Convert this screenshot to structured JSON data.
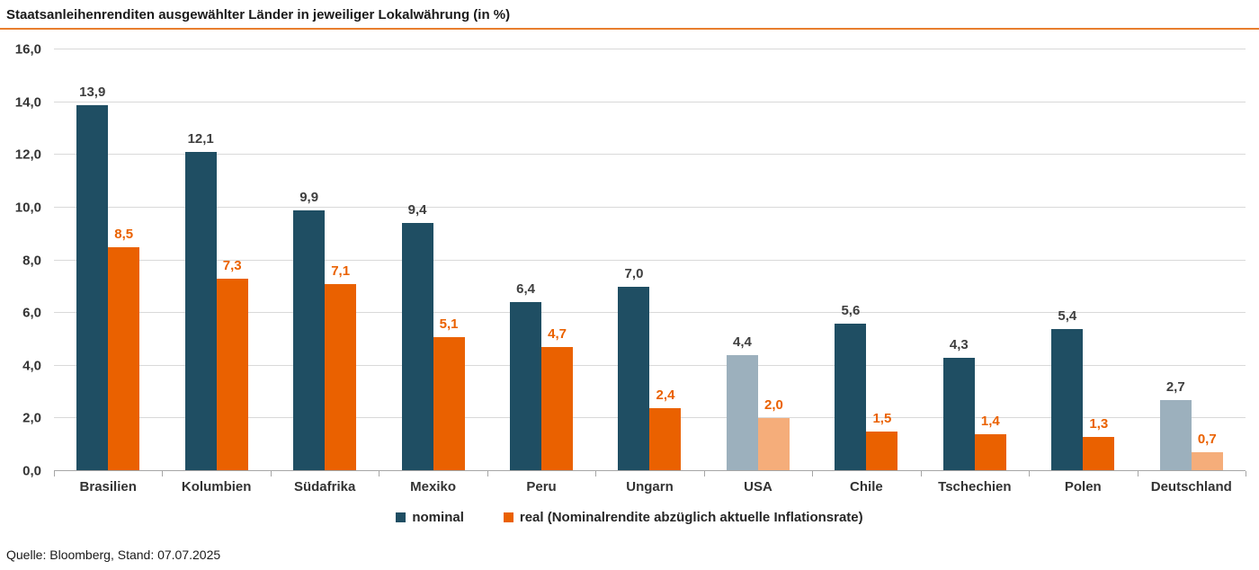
{
  "title": "Staatsanleihenrenditen ausgewählter Länder in jeweiliger Lokalwährung (in %)",
  "source": "Quelle: Bloomberg, Stand: 07.07.2025",
  "colors": {
    "nominal": "#1f4e63",
    "real": "#ea6100",
    "nominal_muted": "#9cb0bd",
    "real_muted": "#f5ad7a",
    "title_underline": "#e87e2e",
    "gridline": "#d9d9d9",
    "axis_line": "#a6a6a6",
    "value_label_dark": "#3f3f3f",
    "value_label_orange": "#ea6100"
  },
  "chart_data": {
    "type": "bar",
    "title": "Staatsanleihenrenditen ausgewählter Länder in jeweiliger Lokalwährung (in %)",
    "xlabel": "",
    "ylabel": "",
    "ylim": [
      0,
      16
    ],
    "grid": true,
    "legend_position": "bottom",
    "categories": [
      "Brasilien",
      "Kolumbien",
      "Südafrika",
      "Mexiko",
      "Peru",
      "Ungarn",
      "USA",
      "Chile",
      "Tschechien",
      "Polen",
      "Deutschland"
    ],
    "muted_categories": [
      "USA",
      "Deutschland"
    ],
    "series": [
      {
        "name": "nominal",
        "values": [
          13.9,
          12.1,
          9.9,
          9.4,
          6.4,
          7.0,
          4.4,
          5.6,
          4.3,
          5.4,
          2.7
        ],
        "labels": [
          "13,9",
          "12,1",
          "9,9",
          "9,4",
          "6,4",
          "7,0",
          "4,4",
          "5,6",
          "4,3",
          "5,4",
          "2,7"
        ]
      },
      {
        "name": "real (Nominalrendite abzüglich aktuelle Inflationsrate)",
        "values": [
          8.5,
          7.3,
          7.1,
          5.1,
          4.7,
          2.4,
          2.0,
          1.5,
          1.4,
          1.3,
          0.7
        ],
        "labels": [
          "8,5",
          "7,3",
          "7,1",
          "5,1",
          "4,7",
          "2,4",
          "2,0",
          "1,5",
          "1,4",
          "1,3",
          "0,7"
        ]
      }
    ],
    "yticks": [
      {
        "value": 0,
        "label": "0,0"
      },
      {
        "value": 2,
        "label": "2,0"
      },
      {
        "value": 4,
        "label": "4,0"
      },
      {
        "value": 6,
        "label": "6,0"
      },
      {
        "value": 8,
        "label": "8,0"
      },
      {
        "value": 10,
        "label": "10,0"
      },
      {
        "value": 12,
        "label": "12,0"
      },
      {
        "value": 14,
        "label": "14,0"
      },
      {
        "value": 16,
        "label": "16,0"
      }
    ],
    "legend": [
      {
        "key": "nominal",
        "label": "nominal"
      },
      {
        "key": "real",
        "label": "real (Nominalrendite abzüglich aktuelle Inflationsrate)"
      }
    ]
  }
}
